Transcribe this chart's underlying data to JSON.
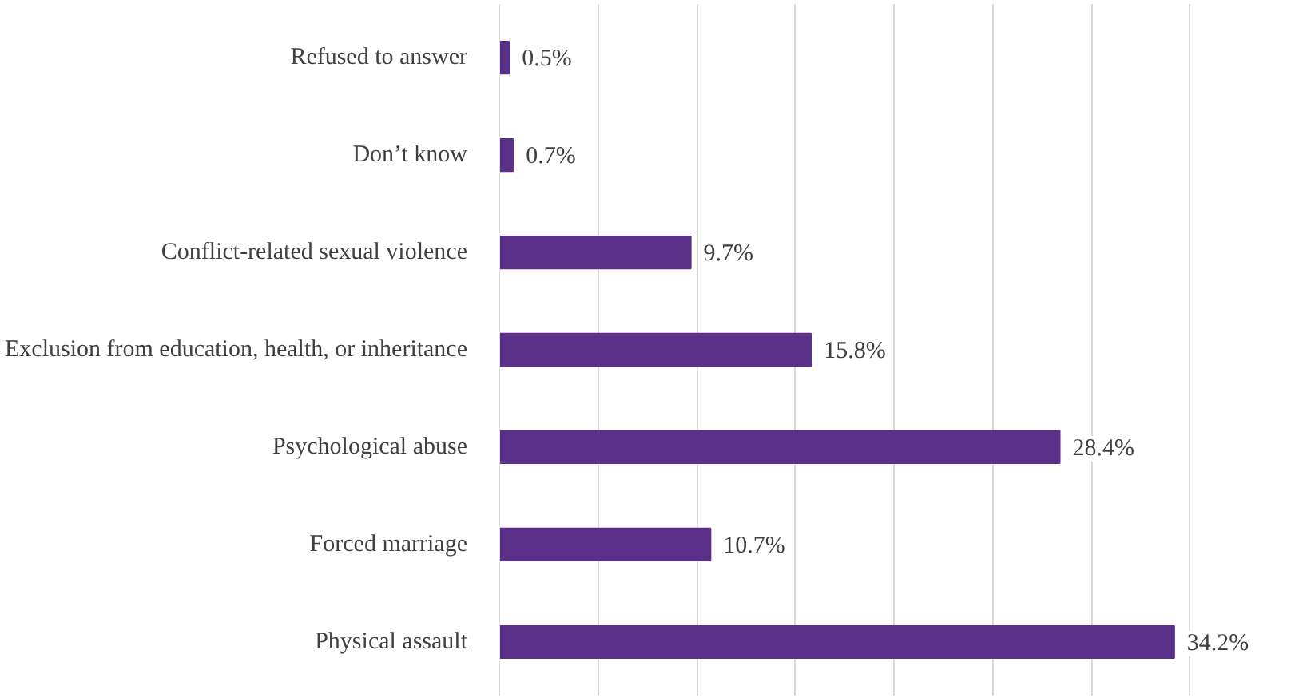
{
  "chart_data": {
    "type": "bar",
    "orientation": "horizontal",
    "categories": [
      "Refused to answer",
      "Don’t know",
      "Conflict-related sexual violence",
      "Exclusion from education, health, or inheritance",
      "Psychological abuse",
      "Forced marriage",
      "Physical assault"
    ],
    "values": [
      0.5,
      0.7,
      9.7,
      15.8,
      28.4,
      10.7,
      34.2
    ],
    "value_labels": [
      "0.5%",
      "0.7%",
      "9.7%",
      "15.8%",
      "28.4%",
      "10.7%",
      "34.2%"
    ],
    "color": "#5b3089",
    "grid": "x",
    "tick_labels": "y"
  }
}
